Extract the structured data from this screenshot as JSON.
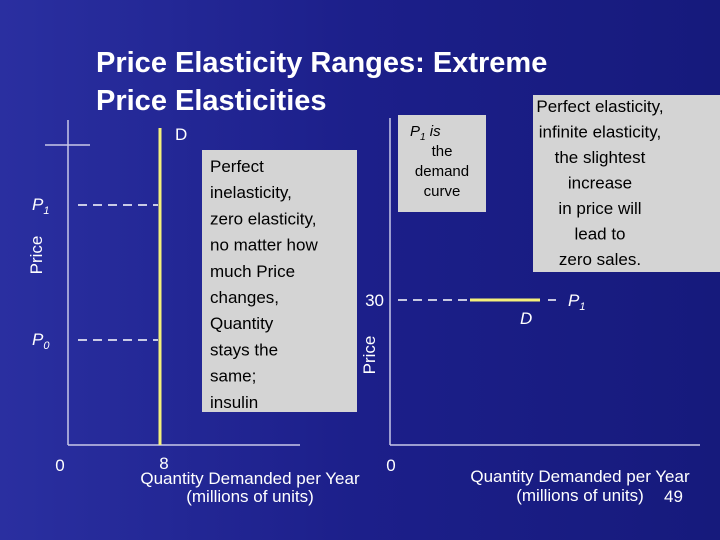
{
  "slide": {
    "title": [
      "Price Elasticity Ranges: Extreme",
      "Price Elasticities"
    ],
    "left_panel": {
      "y_axis_label": "Price",
      "curve_label": "D",
      "price_labels": [
        {
          "main": "P",
          "sub": "1"
        },
        {
          "main": "P",
          "sub": "0"
        }
      ],
      "x_labels": [
        "0",
        "8"
      ],
      "x_axis_title": "Quantity Demanded per Year",
      "x_axis_subtitle": "(millions of units)",
      "callout": [
        "Perfect",
        "inelasticity,",
        "zero elasticity,",
        "no matter how",
        "much Price",
        "changes,",
        "Quantity",
        "stays the",
        "same;",
        "insulin"
      ]
    },
    "right_panel": {
      "y_axis_label": "Price",
      "callout_top": {
        "symbol": {
          "main": "P",
          "sub": "1"
        },
        "lines": [
          " is",
          "the",
          "demand",
          "curve"
        ]
      },
      "price_value": "30",
      "origin_label": "0",
      "curve_label": "D",
      "price_label": {
        "main": "P",
        "sub": "1"
      },
      "x_axis_title": "Quantity Demanded per Year",
      "x_axis_subtitle": "(millions of units)",
      "callout": [
        "Perfect elasticity,",
        "infinite elasticity,",
        "the slightest",
        "increase",
        "in price will",
        "lead to",
        "zero sales."
      ]
    },
    "slide_number": "49"
  }
}
